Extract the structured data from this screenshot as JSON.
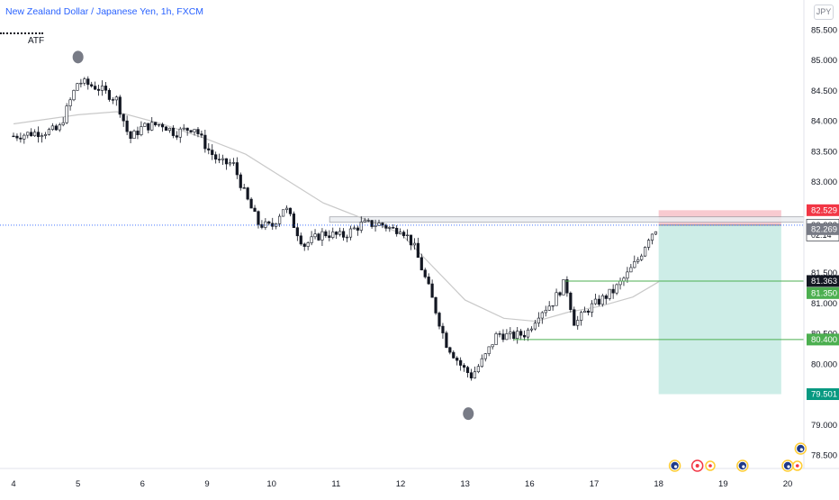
{
  "header": {
    "title": "New Zealand Dollar / Japanese Yen, 1h, FXCM",
    "indicator_label": "ATF",
    "currency": "JPY"
  },
  "colors": {
    "up": "#131722",
    "down": "#131722",
    "ma": "#c9c9c9",
    "stop_zone": "#f7c4cb",
    "target_zone": "#c8ebe4",
    "level_line": "#4caf50",
    "level_label_green": "#4caf50",
    "price_label_dark": "#131722",
    "price_label_gray": "#787b86",
    "stop_label": "#f23645",
    "target_label": "#089981",
    "marker": "#787b86",
    "last_price_line": "#2962ff"
  },
  "chart_data": {
    "type": "candlestick",
    "title": "New Zealand Dollar / Japanese Yen, 1h, FXCM",
    "x_ticks": [
      "4",
      "5",
      "6",
      "9",
      "10",
      "11",
      "12",
      "13",
      "16",
      "17",
      "18",
      "19",
      "20"
    ],
    "y_ticks": [
      "85.500",
      "85.000",
      "84.500",
      "84.000",
      "83.500",
      "83.000",
      "81.500",
      "81.000",
      "80.500",
      "80.000",
      "79.000",
      "78.500"
    ],
    "ylim": [
      78.35,
      85.85
    ],
    "grid": false,
    "close_path": [
      [
        4,
        83.75
      ],
      [
        4.3,
        83.8
      ],
      [
        4.7,
        83.85
      ],
      [
        5,
        84.65
      ],
      [
        5.3,
        84.55
      ],
      [
        5.6,
        84.35
      ],
      [
        5.8,
        83.7
      ],
      [
        6,
        83.9
      ],
      [
        6.3,
        83.95
      ],
      [
        6.5,
        83.8
      ],
      [
        6.8,
        83.9
      ],
      [
        7,
        83.55
      ],
      [
        7.2,
        83.3
      ],
      [
        7.4,
        83.3
      ],
      [
        7.6,
        82.75
      ],
      [
        7.8,
        82.3
      ],
      [
        8,
        82.25
      ],
      [
        8.2,
        82.6
      ],
      [
        8.5,
        81.95
      ],
      [
        8.8,
        82.15
      ],
      [
        9.1,
        82.1
      ],
      [
        9.4,
        82.3
      ],
      [
        9.7,
        82.3
      ],
      [
        9.9,
        82.2
      ],
      [
        10.0,
        82.25
      ],
      [
        10.2,
        81.95
      ],
      [
        10.45,
        81.2
      ],
      [
        10.7,
        80.35
      ],
      [
        10.95,
        79.95
      ],
      [
        11.1,
        79.8
      ],
      [
        11.3,
        80.1
      ],
      [
        11.5,
        80.5
      ],
      [
        11.7,
        80.45
      ],
      [
        11.95,
        80.5
      ],
      [
        12.15,
        80.85
      ],
      [
        12.35,
        81.0
      ],
      [
        12.55,
        81.35
      ],
      [
        12.7,
        80.65
      ],
      [
        12.9,
        80.9
      ],
      [
        13.1,
        81.05
      ],
      [
        13.3,
        81.2
      ],
      [
        13.5,
        81.45
      ],
      [
        13.7,
        81.75
      ],
      [
        13.85,
        82.1
      ],
      [
        14.0,
        82.28
      ]
    ],
    "x_tick_positions": [
      4,
      5,
      6,
      7,
      8,
      9,
      10,
      11,
      12,
      13,
      14,
      15,
      16
    ],
    "ma_path": [
      [
        4,
        83.95
      ],
      [
        5,
        84.1
      ],
      [
        5.6,
        84.15
      ],
      [
        6.3,
        83.95
      ],
      [
        7,
        83.7
      ],
      [
        7.6,
        83.45
      ],
      [
        8.2,
        83.05
      ],
      [
        8.8,
        82.65
      ],
      [
        9.4,
        82.4
      ],
      [
        10.0,
        82.15
      ],
      [
        10.5,
        81.6
      ],
      [
        11.0,
        81.05
      ],
      [
        11.6,
        80.75
      ],
      [
        12.1,
        80.7
      ],
      [
        12.6,
        80.85
      ],
      [
        13.1,
        80.95
      ],
      [
        13.6,
        81.1
      ],
      [
        14.0,
        81.35
      ]
    ],
    "horizontal_levels": [
      {
        "price": 81.363,
        "from_x": 12.55,
        "label": "81.363",
        "style": "dark"
      },
      {
        "price": 80.4,
        "from_x": 11.75,
        "label": "80.400",
        "style": "green"
      }
    ],
    "range_box": {
      "top": 82.42,
      "bottom": 82.33,
      "from_x": 8.9
    },
    "position": {
      "entry": 82.283,
      "stop": 82.529,
      "target": 79.501,
      "from_x": 14.0,
      "to_x": 15.9
    },
    "price_labels": [
      {
        "value": "82.529",
        "price": 82.529,
        "style": "stop"
      },
      {
        "value": "82.283",
        "price": 82.283,
        "style": "current",
        "sub": "02:14"
      },
      {
        "value": "82.269",
        "price": 82.269,
        "style": "gray"
      },
      {
        "value": "81.363",
        "price": 81.363,
        "style": "dark"
      },
      {
        "value": "81.350",
        "price": 81.35,
        "style": "green"
      },
      {
        "value": "80.400",
        "price": 80.4,
        "style": "green"
      },
      {
        "value": "79.501",
        "price": 79.501,
        "style": "target"
      }
    ],
    "markers": [
      {
        "x": 5.0,
        "price": 85.05
      },
      {
        "x": 11.05,
        "price": 79.18
      }
    ],
    "event_icons": [
      {
        "x": 14.25,
        "kind": "flag"
      },
      {
        "x": 14.6,
        "kind": "ring"
      },
      {
        "x": 14.8,
        "kind": "dot"
      },
      {
        "x": 15.3,
        "kind": "flag"
      },
      {
        "x": 16.0,
        "kind": "flag"
      },
      {
        "x": 16.15,
        "kind": "dot"
      },
      {
        "x": 16.2,
        "kind": "flag-high"
      }
    ]
  }
}
